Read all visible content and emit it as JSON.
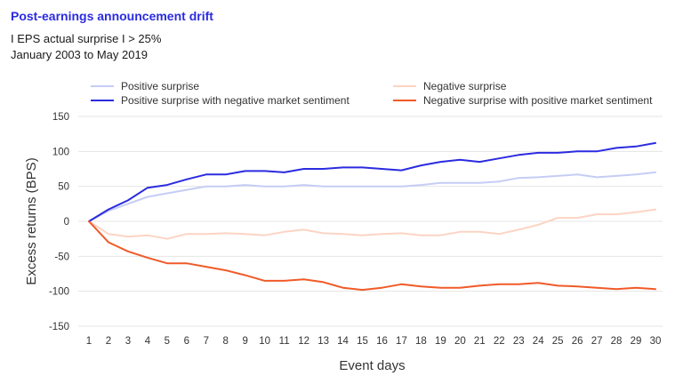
{
  "chart_data": {
    "type": "line",
    "title": "Post-earnings announcement drift",
    "subtitle_lines": [
      "I EPS actual surprise I > 25%",
      "January 2003 to May 2019"
    ],
    "xlabel": "Event days",
    "ylabel": "Excess returns (BPS)",
    "x": [
      1,
      2,
      3,
      4,
      5,
      6,
      7,
      8,
      9,
      10,
      11,
      12,
      13,
      14,
      15,
      16,
      17,
      18,
      19,
      20,
      21,
      22,
      23,
      24,
      25,
      26,
      27,
      28,
      29,
      30
    ],
    "ylim": [
      -150,
      150
    ],
    "yticks": [
      150,
      100,
      50,
      0,
      -50,
      -100,
      -150
    ],
    "grid": "horizontal",
    "legend_position": "top",
    "series": [
      {
        "name": "Positive surprise",
        "color": "#c5cdf5",
        "values": [
          0,
          15,
          25,
          35,
          40,
          45,
          50,
          50,
          52,
          50,
          50,
          52,
          50,
          50,
          50,
          50,
          50,
          52,
          55,
          55,
          55,
          57,
          62,
          63,
          65,
          67,
          63,
          65,
          67,
          70
        ]
      },
      {
        "name": "Negative surprise",
        "color": "#fcd4c4",
        "values": [
          0,
          -18,
          -22,
          -20,
          -25,
          -18,
          -18,
          -17,
          -18,
          -20,
          -15,
          -12,
          -17,
          -18,
          -20,
          -18,
          -17,
          -20,
          -20,
          -15,
          -15,
          -18,
          -12,
          -5,
          5,
          5,
          10,
          10,
          13,
          17
        ]
      },
      {
        "name": "Positive surprise with negative market sentiment",
        "color": "#2b2be0",
        "values": [
          0,
          17,
          30,
          48,
          52,
          60,
          67,
          67,
          72,
          72,
          70,
          75,
          75,
          77,
          77,
          75,
          73,
          80,
          85,
          88,
          85,
          90,
          95,
          98,
          98,
          100,
          100,
          105,
          107,
          112
        ]
      },
      {
        "name": "Negative surprise with positive market sentiment",
        "color": "#f05a28",
        "values": [
          0,
          -30,
          -43,
          -52,
          -60,
          -60,
          -65,
          -70,
          -77,
          -85,
          -85,
          -83,
          -87,
          -95,
          -98,
          -95,
          -90,
          -93,
          -95,
          -95,
          -92,
          -90,
          -90,
          -88,
          -92,
          -93,
          -95,
          -97,
          -95,
          -97
        ]
      }
    ]
  }
}
